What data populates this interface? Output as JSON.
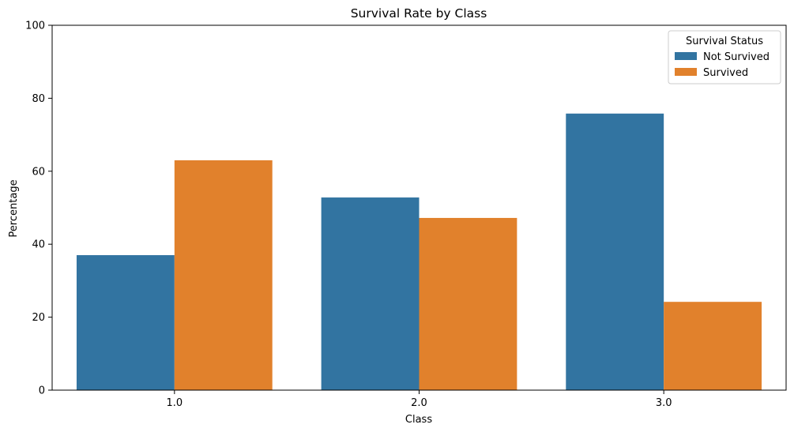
{
  "chart_data": {
    "type": "bar",
    "title": "Survival Rate by Class",
    "xlabel": "Class",
    "ylabel": "Percentage",
    "categories": [
      "1.0",
      "2.0",
      "3.0"
    ],
    "series": [
      {
        "name": "Not Survived",
        "values": [
          37.0,
          52.8,
          75.8
        ],
        "color": "#3274a1"
      },
      {
        "name": "Survived",
        "values": [
          63.0,
          47.2,
          24.2
        ],
        "color": "#e1812c"
      }
    ],
    "ylim": [
      0,
      100
    ],
    "yticks": [
      "0",
      "20",
      "40",
      "60",
      "80",
      "100"
    ],
    "grid": false,
    "legend": {
      "title": "Survival Status",
      "placement": "top-right"
    }
  }
}
